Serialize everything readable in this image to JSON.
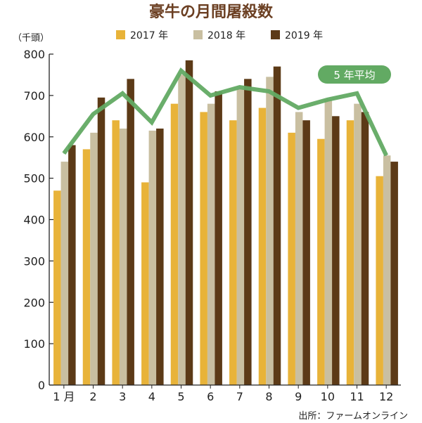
{
  "chart_data": {
    "type": "bar",
    "title": "豪牛の月間屠殺数",
    "unit_label": "（千頭）",
    "source": "出所：ファームオンライン",
    "categories": [
      "1 月",
      "2",
      "3",
      "4",
      "5",
      "6",
      "7",
      "8",
      "9",
      "10",
      "11",
      "12"
    ],
    "ylim": [
      0,
      800
    ],
    "yticks": [
      0,
      100,
      200,
      300,
      400,
      500,
      600,
      700,
      800
    ],
    "grid": false,
    "legend_position": "top",
    "series": [
      {
        "name": "2017 年",
        "color": "#E8B339",
        "values": [
          470,
          570,
          640,
          490,
          680,
          660,
          640,
          670,
          610,
          595,
          640,
          505
        ]
      },
      {
        "name": "2018 年",
        "color": "#C9BFA1",
        "values": [
          540,
          610,
          620,
          615,
          750,
          680,
          715,
          745,
          660,
          690,
          680,
          555
        ]
      },
      {
        "name": "2019 年",
        "color": "#5C3A17",
        "values": [
          580,
          695,
          740,
          620,
          785,
          710,
          740,
          770,
          640,
          650,
          660,
          540
        ]
      }
    ],
    "line": {
      "name": "5 年平均",
      "color": "#62AA63",
      "values": [
        560,
        655,
        705,
        635,
        760,
        700,
        720,
        710,
        670,
        690,
        705,
        555
      ]
    }
  }
}
